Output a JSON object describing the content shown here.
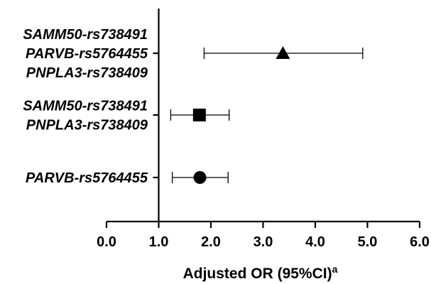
{
  "chart_data": {
    "type": "forest",
    "xlabel": "Adjusted OR (95%CI)",
    "xlabel_superscript": "a",
    "xlim": [
      0.0,
      6.0
    ],
    "ticks": [
      "0.0",
      "1.0",
      "2.0",
      "3.0",
      "4.0",
      "5.0",
      "6.0"
    ],
    "tick_values": [
      0,
      1,
      2,
      3,
      4,
      5,
      6
    ],
    "reference_line": 1.0,
    "grid": false,
    "rows": [
      {
        "label_lines": [
          "SAMM50-rs738491",
          "PARVB-rs5764455",
          "PNPLA3-rs738409"
        ],
        "or": 3.38,
        "ci_low": 1.87,
        "ci_high": 4.91,
        "marker": "triangle"
      },
      {
        "label_lines": [
          "SAMM50-rs738491",
          "PNPLA3-rs738409"
        ],
        "or": 1.78,
        "ci_low": 1.23,
        "ci_high": 2.35,
        "marker": "square"
      },
      {
        "label_lines": [
          "PARVB-rs5764455"
        ],
        "or": 1.79,
        "ci_low": 1.26,
        "ci_high": 2.33,
        "marker": "circle"
      }
    ],
    "colors": {
      "line": "#000000",
      "marker": "#000000"
    }
  }
}
